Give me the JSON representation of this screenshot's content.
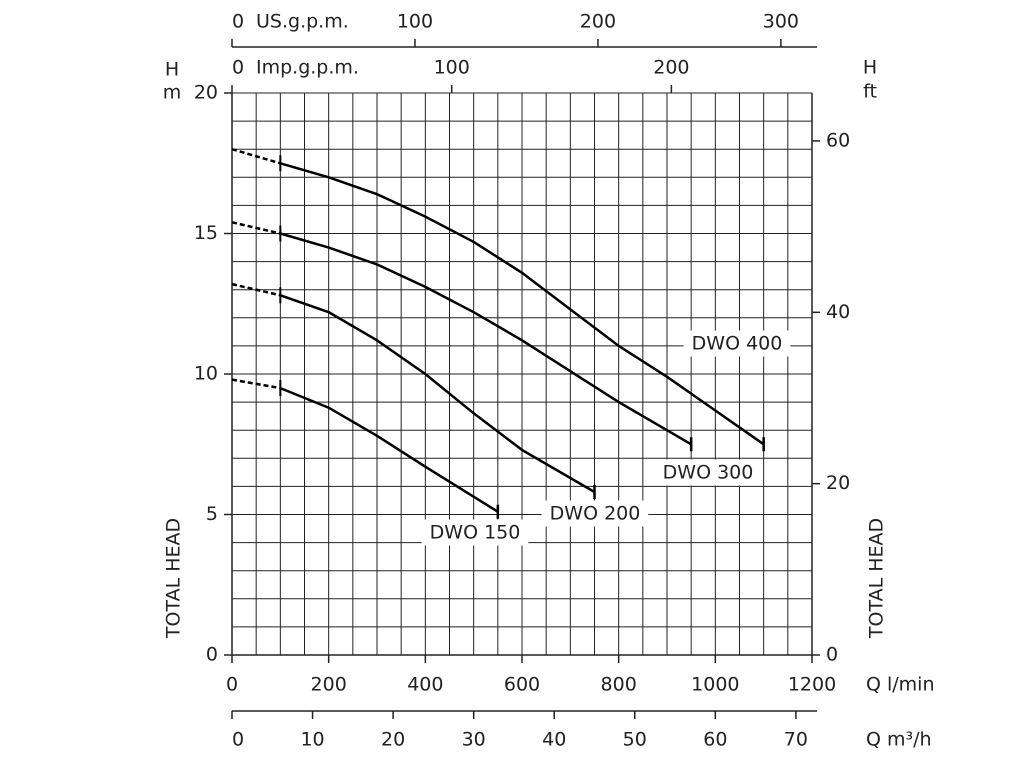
{
  "chart_data": {
    "type": "line",
    "x_title": "Q l/min",
    "xlim": [
      0,
      1200
    ],
    "xticks": [
      0,
      200,
      400,
      600,
      800,
      1000,
      1200
    ],
    "ylim": [
      0,
      20
    ],
    "yticks": [
      0,
      5,
      10,
      15,
      20
    ],
    "y_symbol": "H",
    "y_unit": "m",
    "y_title": "TOTAL HEAD",
    "y2_symbol": "H",
    "y2_unit": "ft",
    "y2_title": "TOTAL HEAD",
    "y2lim": [
      0,
      65.6
    ],
    "y2ticks": [
      0,
      20,
      40,
      60
    ],
    "grid": true,
    "grid_x_step": 50,
    "grid_y_step": 1,
    "dashed_below_x": 100,
    "extra_x_axes": [
      {
        "title": "US.g.p.m.",
        "xlim": [
          0,
          317
        ],
        "xticks": [
          0,
          100,
          200,
          300
        ],
        "position": "top"
      },
      {
        "title": "Imp.g.p.m.",
        "xlim": [
          0,
          264
        ],
        "xticks": [
          0,
          100,
          200
        ],
        "position": "top-inner"
      },
      {
        "title": "Q m³/h",
        "xlim": [
          0,
          72
        ],
        "xticks": [
          0,
          10,
          20,
          30,
          40,
          50,
          60,
          70
        ],
        "position": "bottom"
      }
    ],
    "series": [
      {
        "name": "DWO 400",
        "color": "#000000",
        "x": [
          0,
          100,
          200,
          300,
          400,
          500,
          600,
          700,
          800,
          900,
          1000,
          1100
        ],
        "values": [
          18.0,
          17.5,
          17.0,
          16.4,
          15.6,
          14.7,
          13.6,
          12.3,
          11.0,
          9.9,
          8.7,
          7.5
        ]
      },
      {
        "name": "DWO 300",
        "color": "#000000",
        "x": [
          0,
          100,
          200,
          300,
          400,
          500,
          600,
          700,
          800,
          950
        ],
        "values": [
          15.4,
          15.0,
          14.5,
          13.9,
          13.1,
          12.2,
          11.2,
          10.1,
          9.0,
          7.5
        ]
      },
      {
        "name": "DWO 200",
        "color": "#000000",
        "x": [
          0,
          100,
          200,
          300,
          400,
          500,
          600,
          750
        ],
        "values": [
          13.2,
          12.8,
          12.2,
          11.2,
          10.0,
          8.6,
          7.3,
          5.8
        ]
      },
      {
        "name": "DWO 150",
        "color": "#000000",
        "x": [
          0,
          100,
          200,
          300,
          400,
          550
        ],
        "values": [
          9.8,
          9.5,
          8.8,
          7.8,
          6.7,
          5.1
        ]
      }
    ]
  }
}
